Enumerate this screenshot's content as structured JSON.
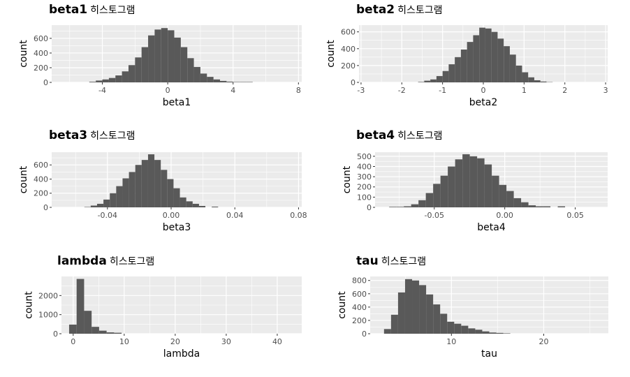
{
  "title_suffix": "히스토그램",
  "colors": {
    "panel_bg": "#EBEBEB",
    "grid": "#FFFFFF",
    "bar": "#595959",
    "tick_text": "#4D4D4D"
  },
  "chart_data": [
    {
      "type": "bar",
      "title": "beta1",
      "xlabel": "beta1",
      "ylabel": "count",
      "xlim": [
        -7.1,
        8.2
      ],
      "ylim": [
        0,
        780
      ],
      "xticks": [
        -4,
        0,
        4,
        8
      ],
      "yticks": [
        0,
        200,
        400,
        600
      ],
      "bin_start": -4.8,
      "binwidth": 0.4,
      "values": [
        8,
        25,
        40,
        60,
        95,
        150,
        235,
        340,
        480,
        640,
        720,
        740,
        710,
        610,
        480,
        330,
        210,
        120,
        75,
        40,
        20,
        10,
        5,
        5,
        5
      ]
    },
    {
      "type": "bar",
      "title": "beta2",
      "xlabel": "beta2",
      "ylabel": "count",
      "xlim": [
        -3.05,
        3.05
      ],
      "ylim": [
        0,
        680
      ],
      "xticks": [
        -3,
        -2,
        -1,
        0,
        1,
        2,
        3
      ],
      "yticks": [
        0,
        200,
        400,
        600
      ],
      "bin_start": -1.6,
      "binwidth": 0.15,
      "values": [
        5,
        20,
        35,
        75,
        135,
        215,
        300,
        390,
        480,
        560,
        650,
        640,
        600,
        520,
        430,
        330,
        200,
        120,
        60,
        25,
        10,
        3
      ]
    },
    {
      "type": "bar",
      "title": "beta3",
      "xlabel": "beta3",
      "ylabel": "count",
      "xlim": [
        -0.075,
        0.082
      ],
      "ylim": [
        0,
        780
      ],
      "xticks": [
        -0.04,
        0.0,
        0.04,
        0.08
      ],
      "yticks": [
        0,
        200,
        400,
        600
      ],
      "xtick_labels": [
        "-0.04",
        "0.00",
        "0.04",
        "0.08"
      ],
      "bin_start": -0.0545,
      "binwidth": 0.004,
      "values": [
        5,
        25,
        50,
        110,
        200,
        300,
        410,
        500,
        600,
        670,
        750,
        670,
        530,
        400,
        270,
        140,
        85,
        50,
        20,
        0,
        10
      ]
    },
    {
      "type": "bar",
      "title": "beta4",
      "xlabel": "beta4",
      "ylabel": "count",
      "xlim": [
        -0.092,
        0.073
      ],
      "ylim": [
        0,
        540
      ],
      "xticks": [
        -0.05,
        0.0,
        0.05
      ],
      "yticks": [
        0,
        100,
        200,
        300,
        400,
        500
      ],
      "xtick_labels": [
        "-0.05",
        "0.00",
        "0.05"
      ],
      "bin_start": -0.082,
      "binwidth": 0.0052,
      "values": [
        5,
        5,
        10,
        30,
        70,
        140,
        230,
        310,
        400,
        470,
        520,
        500,
        480,
        420,
        310,
        220,
        160,
        90,
        50,
        20,
        10,
        10,
        0,
        10
      ]
    },
    {
      "type": "bar",
      "title": "lambda",
      "xlabel": "lambda",
      "ylabel": "count",
      "xlim": [
        -2.3,
        44.8
      ],
      "ylim": [
        0,
        3000
      ],
      "xticks": [
        0,
        10,
        20,
        30,
        40
      ],
      "yticks": [
        0,
        1000,
        2000
      ],
      "bin_start": -0.8,
      "binwidth": 1.47,
      "values": [
        480,
        2870,
        1200,
        360,
        160,
        70,
        50
      ]
    },
    {
      "type": "bar",
      "title": "tau",
      "xlabel": "tau",
      "ylabel": "count",
      "xlim": [
        1.2,
        27.0
      ],
      "ylim": [
        0,
        860
      ],
      "xticks": [
        10,
        20
      ],
      "yticks": [
        0,
        200,
        400,
        600,
        800
      ],
      "bin_start": 2.7,
      "binwidth": 0.76,
      "values": [
        70,
        285,
        620,
        820,
        800,
        730,
        590,
        440,
        300,
        180,
        150,
        120,
        80,
        60,
        35,
        18,
        12,
        6
      ]
    }
  ]
}
